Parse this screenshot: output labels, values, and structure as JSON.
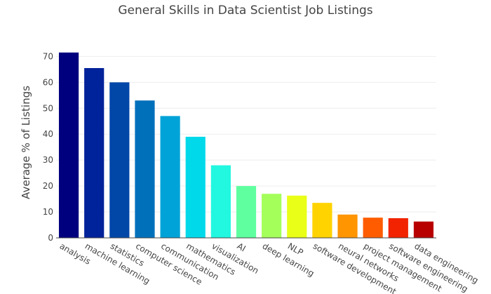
{
  "chart_data": {
    "type": "bar",
    "title": "General Skills in Data Scientist Job Listings",
    "ylabel": "Average % of Listings",
    "xlabel": "",
    "ylim": [
      0,
      72
    ],
    "yticks": [
      0,
      10,
      20,
      30,
      40,
      50,
      60,
      70
    ],
    "grid": true,
    "legend": "none",
    "categories": [
      "analysis",
      "machine learning",
      "statistics",
      "computer science",
      "communication",
      "mathematics",
      "visualization",
      "AI",
      "deep learning",
      "NLP",
      "software development",
      "neural networks",
      "project management",
      "software engineering",
      "data engineering"
    ],
    "values": [
      71.5,
      65.5,
      60,
      53,
      47,
      39,
      28,
      20,
      17,
      16.3,
      13.5,
      9,
      7.8,
      7.6,
      6.3
    ],
    "colors": [
      "#00007f",
      "#00229a",
      "#0047a8",
      "#0070bb",
      "#00a3d7",
      "#00d9ea",
      "#22f7e0",
      "#5fff9f",
      "#a4ff5b",
      "#e9ff18",
      "#ffd300",
      "#ff9500",
      "#ff5c00",
      "#f12300",
      "#b80000"
    ]
  }
}
